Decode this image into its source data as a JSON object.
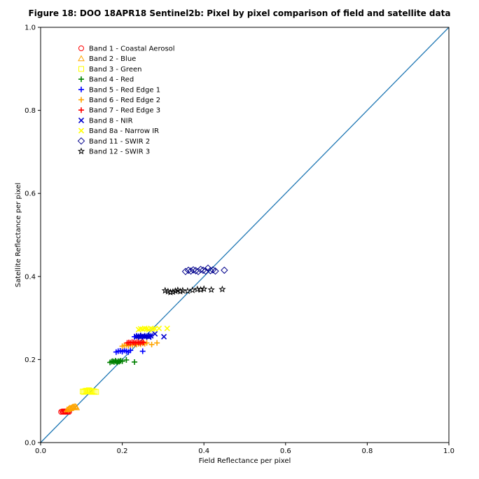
{
  "chart_data": {
    "type": "scatter",
    "title": "Figure 18: DOO 18APR18  Sentinel2b: Pixel by pixel comparison of field and satellite data",
    "xlabel": "Field Reflectance per pixel",
    "ylabel": "Satellite Reflectance per pixel",
    "xlim": [
      0.0,
      1.0
    ],
    "ylim": [
      0.0,
      1.0
    ],
    "xticks": [
      "0.0",
      "0.2",
      "0.4",
      "0.6",
      "0.8",
      "1.0"
    ],
    "yticks": [
      "0.0",
      "0.2",
      "0.4",
      "0.6",
      "0.8",
      "1.0"
    ],
    "grid": false,
    "legend_position": "upper-left",
    "reference_line": {
      "x": [
        0,
        1
      ],
      "y": [
        0,
        1
      ],
      "color": "#1f77b4"
    },
    "series": [
      {
        "name": "Band 1 - Coastal Aerosol",
        "marker": "circle",
        "color": "#ff0000",
        "x": [
          0.05,
          0.053,
          0.055,
          0.057,
          0.058,
          0.06,
          0.061,
          0.062,
          0.064,
          0.066,
          0.068,
          0.07
        ],
        "y": [
          0.074,
          0.075,
          0.074,
          0.075,
          0.074,
          0.075,
          0.074,
          0.075,
          0.074,
          0.075,
          0.075,
          0.074
        ]
      },
      {
        "name": "Band 2 - Blue",
        "marker": "triangle",
        "color": "#ffa500",
        "x": [
          0.065,
          0.068,
          0.07,
          0.072,
          0.074,
          0.076,
          0.078,
          0.08,
          0.082,
          0.084,
          0.086,
          0.088
        ],
        "y": [
          0.079,
          0.08,
          0.082,
          0.083,
          0.082,
          0.084,
          0.085,
          0.086,
          0.085,
          0.087,
          0.086,
          0.084
        ]
      },
      {
        "name": "Band 3 - Green",
        "marker": "square",
        "color": "#ffff00",
        "x": [
          0.103,
          0.106,
          0.109,
          0.112,
          0.114,
          0.116,
          0.118,
          0.12,
          0.122,
          0.125,
          0.128,
          0.132,
          0.136
        ],
        "y": [
          0.123,
          0.122,
          0.124,
          0.125,
          0.123,
          0.124,
          0.126,
          0.125,
          0.123,
          0.122,
          0.124,
          0.123,
          0.122
        ]
      },
      {
        "name": "Band 4 - Red",
        "marker": "plus",
        "color": "#008000",
        "x": [
          0.17,
          0.174,
          0.177,
          0.18,
          0.183,
          0.185,
          0.188,
          0.19,
          0.193,
          0.196,
          0.2,
          0.21,
          0.23
        ],
        "y": [
          0.193,
          0.195,
          0.196,
          0.194,
          0.197,
          0.195,
          0.193,
          0.196,
          0.195,
          0.197,
          0.196,
          0.199,
          0.194
        ]
      },
      {
        "name": "Band 5 - Red Edge 1",
        "marker": "plus",
        "color": "#0000ff",
        "x": [
          0.185,
          0.19,
          0.195,
          0.2,
          0.205,
          0.21,
          0.215,
          0.22,
          0.23,
          0.235,
          0.24,
          0.245,
          0.25,
          0.255,
          0.26,
          0.265,
          0.27,
          0.25
        ],
        "y": [
          0.218,
          0.22,
          0.221,
          0.219,
          0.222,
          0.22,
          0.218,
          0.222,
          0.255,
          0.257,
          0.256,
          0.258,
          0.255,
          0.257,
          0.256,
          0.258,
          0.257,
          0.22
        ]
      },
      {
        "name": "Band 6 - Red Edge 2",
        "marker": "plus",
        "color": "#ffa500",
        "x": [
          0.2,
          0.205,
          0.21,
          0.215,
          0.22,
          0.225,
          0.23,
          0.235,
          0.24,
          0.245,
          0.25,
          0.255,
          0.26,
          0.272,
          0.285
        ],
        "y": [
          0.232,
          0.234,
          0.235,
          0.233,
          0.236,
          0.235,
          0.237,
          0.236,
          0.238,
          0.237,
          0.239,
          0.238,
          0.24,
          0.236,
          0.24
        ]
      },
      {
        "name": "Band 7 - Red Edge 3",
        "marker": "plus",
        "color": "#ff0000",
        "x": [
          0.212,
          0.216,
          0.22,
          0.224,
          0.228,
          0.232,
          0.236,
          0.24,
          0.244,
          0.248,
          0.252
        ],
        "y": [
          0.24,
          0.241,
          0.24,
          0.242,
          0.241,
          0.24,
          0.242,
          0.241,
          0.24,
          0.242,
          0.241
        ]
      },
      {
        "name": "Band 8 - NIR",
        "marker": "x",
        "color": "#0000cd",
        "x": [
          0.235,
          0.24,
          0.245,
          0.25,
          0.255,
          0.26,
          0.265,
          0.27,
          0.28,
          0.302
        ],
        "y": [
          0.255,
          0.256,
          0.254,
          0.257,
          0.255,
          0.256,
          0.254,
          0.257,
          0.262,
          0.255
        ]
      },
      {
        "name": "Band 8a - Narrow IR",
        "marker": "x",
        "color": "#ffff00",
        "x": [
          0.24,
          0.245,
          0.25,
          0.255,
          0.26,
          0.265,
          0.27,
          0.275,
          0.28,
          0.29,
          0.31
        ],
        "y": [
          0.272,
          0.274,
          0.273,
          0.275,
          0.274,
          0.272,
          0.275,
          0.273,
          0.274,
          0.275,
          0.275
        ]
      },
      {
        "name": "Band 11 - SWIR 2",
        "marker": "diamond",
        "color": "#00008b",
        "x": [
          0.355,
          0.362,
          0.368,
          0.374,
          0.38,
          0.386,
          0.392,
          0.398,
          0.404,
          0.41,
          0.416,
          0.422,
          0.428,
          0.45
        ],
        "y": [
          0.412,
          0.415,
          0.413,
          0.416,
          0.414,
          0.412,
          0.417,
          0.415,
          0.413,
          0.42,
          0.414,
          0.416,
          0.413,
          0.415
        ]
      },
      {
        "name": "Band 12 - SWIR 3",
        "marker": "star",
        "color": "#000000",
        "x": [
          0.305,
          0.312,
          0.318,
          0.324,
          0.33,
          0.336,
          0.342,
          0.348,
          0.36,
          0.372,
          0.384,
          0.392,
          0.4,
          0.418,
          0.445
        ],
        "y": [
          0.366,
          0.364,
          0.362,
          0.363,
          0.365,
          0.367,
          0.364,
          0.366,
          0.365,
          0.367,
          0.369,
          0.368,
          0.37,
          0.368,
          0.369
        ]
      }
    ]
  }
}
